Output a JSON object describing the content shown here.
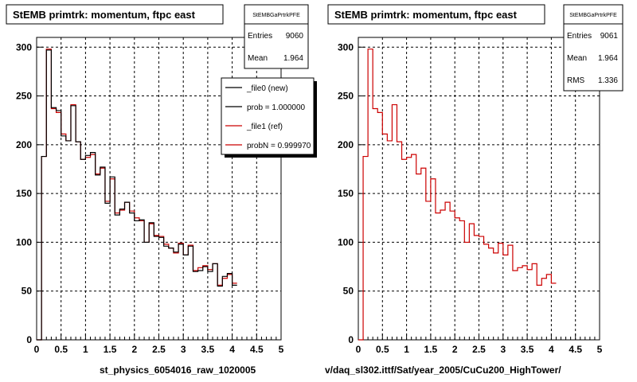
{
  "chart_data": [
    {
      "type": "line",
      "title": "StEMB primtrk: momentum, ftpc east",
      "xlabel": "st_physics_6054016_raw_1020005",
      "xlim": [
        0,
        5
      ],
      "ylim": [
        0,
        310
      ],
      "xticks": [
        "0",
        "0.5",
        "1",
        "1.5",
        "2",
        "2.5",
        "3",
        "3.5",
        "4",
        "4.5",
        "5"
      ],
      "yticks": [
        "0",
        "50",
        "100",
        "150",
        "200",
        "250",
        "300"
      ],
      "grid": true,
      "bin_width": 0.1,
      "x_start": 0,
      "stats": {
        "header": "StEMBGaPrtrkPFE",
        "rows": [
          {
            "label": "Entries",
            "value": "9060"
          },
          {
            "label": "Mean",
            "value": "1.964"
          }
        ]
      },
      "legend": {
        "position": "top-right",
        "entries": [
          {
            "label": "_file0 (new)",
            "color": "#000000"
          },
          {
            "label": "prob = 1.000000",
            "color": "#000000"
          },
          {
            "label": "_file1 (ref)",
            "color": "#cc0000"
          },
          {
            "label": "probN = 0.999970",
            "color": "#cc0000"
          }
        ]
      },
      "series": [
        {
          "name": "_file0 (new)",
          "color": "#000000",
          "values": [
            0,
            188,
            297,
            238,
            235,
            209,
            204,
            240,
            203,
            185,
            189,
            192,
            169,
            177,
            140,
            167,
            128,
            134,
            141,
            130,
            122,
            123,
            100,
            120,
            106,
            105,
            96,
            94,
            90,
            98,
            87,
            96,
            70,
            71,
            75,
            70,
            78,
            55,
            65,
            68,
            56
          ]
        },
        {
          "name": "_file1 (ref)",
          "color": "#cc0000",
          "values": [
            0,
            188,
            298,
            237,
            233,
            211,
            204,
            241,
            203,
            185,
            187,
            190,
            170,
            176,
            142,
            165,
            130,
            133,
            141,
            132,
            125,
            122,
            100,
            119,
            107,
            106,
            98,
            94,
            89,
            99,
            87,
            97,
            71,
            74,
            76,
            72,
            78,
            56,
            63,
            67,
            58
          ]
        }
      ]
    },
    {
      "type": "line",
      "title": "StEMB primtrk: momentum, ftpc east",
      "xlabel": "v/daq_sl302.ittf/Sat/year_2005/CuCu200_HighTower/",
      "xlim": [
        0,
        5
      ],
      "ylim": [
        0,
        310
      ],
      "xticks": [
        "0",
        "0.5",
        "1",
        "1.5",
        "2",
        "2.5",
        "3",
        "3.5",
        "4",
        "4.5",
        "5"
      ],
      "yticks": [
        "0",
        "50",
        "100",
        "150",
        "200",
        "250",
        "300"
      ],
      "grid": true,
      "bin_width": 0.1,
      "x_start": 0,
      "stats": {
        "header": "StEMBGaPrtrkPFE",
        "rows": [
          {
            "label": "Entries",
            "value": "9061"
          },
          {
            "label": "Mean",
            "value": "1.964"
          },
          {
            "label": "RMS",
            "value": "1.336"
          }
        ]
      },
      "series": [
        {
          "name": "_file1 (ref)",
          "color": "#cc0000",
          "values": [
            0,
            188,
            298,
            237,
            233,
            211,
            204,
            241,
            203,
            185,
            187,
            190,
            170,
            176,
            142,
            165,
            130,
            133,
            141,
            132,
            125,
            122,
            100,
            119,
            107,
            106,
            98,
            94,
            89,
            99,
            87,
            97,
            71,
            74,
            76,
            72,
            78,
            56,
            63,
            67,
            58
          ]
        }
      ]
    }
  ]
}
